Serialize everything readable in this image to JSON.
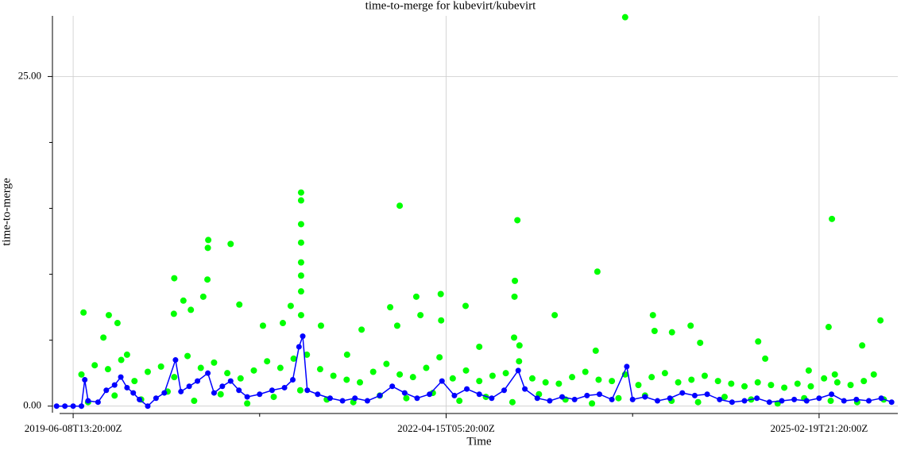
{
  "chart_data": {
    "type": "scatter",
    "title": "time-to-merge for kubevirt/kubevirt",
    "x_label": "Time",
    "y_label": "time-to-merge",
    "xlim": [
      1555000000,
      1759000000
    ],
    "xticks": [
      {
        "value": 1560000000,
        "label": "2019-06-08T13:20:00Z"
      },
      {
        "value": 1650000000,
        "label": "2022-04-15T05:20:00Z"
      },
      {
        "value": 1740000000,
        "label": "2025-02-19T21:20:00Z"
      }
    ],
    "xminorticks": [
      1605000000,
      1695000000
    ],
    "ylim": [
      -0.5,
      29.6
    ],
    "yticks": [
      {
        "value": 0,
        "label": "0.00"
      },
      {
        "value": 25,
        "label": "25.00"
      }
    ],
    "yminorticks": [
      5,
      10,
      15,
      20
    ],
    "grid": true,
    "series": [
      {
        "color": "#00ff00",
        "x": [
          1562500000,
          1568600000,
          1567300000,
          1570700000,
          1573000000,
          1584400000,
          1584300000,
          1586600000,
          1588400000,
          1592600000,
          1592500000,
          1592400000,
          1591400000,
          1598000000,
          1600100000,
          1605800000,
          1610600000,
          1612500000,
          1615000000,
          1615000000,
          1615000000,
          1615000000,
          1615000000,
          1615000000,
          1615000000,
          1615000000,
          1619800000,
          1626100000,
          1629600000,
          1636500000,
          1638800000,
          1638200000,
          1642800000,
          1643800000,
          1648700000,
          1648800000,
          1654700000,
          1658000000,
          1666600000,
          1666500000,
          1666400000,
          1667200000,
          1667700000,
          1676200000,
          1686500000,
          1686100000,
          1693200000,
          1699900000,
          1700300000,
          1704500000,
          1709000000,
          1711300000,
          1725300000,
          1727000000,
          1737500000,
          1742300000,
          1743100000,
          1743800000,
          1750400000,
          1754800000,
          1753200000
        ],
        "values": [
          7.1,
          6.9,
          5.2,
          6.3,
          3.9,
          9.7,
          7.0,
          8.0,
          7.3,
          12.6,
          12.0,
          9.6,
          8.3,
          12.3,
          7.7,
          6.1,
          6.3,
          7.6,
          16.2,
          15.6,
          13.8,
          12.4,
          10.9,
          9.9,
          8.7,
          6.9,
          6.1,
          3.9,
          5.8,
          7.5,
          15.2,
          6.1,
          8.3,
          6.9,
          8.5,
          6.5,
          7.6,
          4.5,
          9.5,
          8.3,
          5.2,
          14.1,
          4.6,
          6.9,
          10.2,
          4.2,
          29.5,
          6.9,
          5.7,
          5.6,
          6.1,
          4.8,
          4.9,
          3.6,
          2.7,
          6.0,
          14.2,
          2.4,
          4.6,
          6.5,
          2.4
        ]
      },
      {
        "color": "#00ff00",
        "x": [
          1562000000,
          1565200000,
          1568400000,
          1571600000,
          1574800000,
          1578000000,
          1581200000,
          1584400000,
          1587600000,
          1590800000,
          1594000000,
          1597200000,
          1600400000,
          1603600000,
          1606800000,
          1610000000,
          1613200000,
          1616400000,
          1619600000,
          1622800000,
          1626000000,
          1629200000,
          1632400000,
          1635600000,
          1638800000,
          1642000000,
          1645200000,
          1648400000,
          1651600000,
          1654800000,
          1658000000,
          1661200000,
          1664400000,
          1667600000,
          1670800000,
          1674000000,
          1677200000,
          1680400000,
          1683600000,
          1686800000,
          1690000000,
          1693200000,
          1696400000,
          1699600000,
          1702800000,
          1706000000,
          1709200000,
          1712400000,
          1715600000,
          1718800000,
          1722000000,
          1725200000,
          1728400000,
          1731600000,
          1734800000,
          1738000000,
          1741200000,
          1744400000,
          1747600000,
          1750800000
        ],
        "values": [
          2.4,
          3.1,
          2.8,
          3.5,
          1.9,
          2.6,
          3.0,
          2.2,
          3.8,
          2.9,
          3.3,
          2.5,
          2.1,
          2.7,
          3.4,
          2.9,
          3.6,
          3.9,
          2.8,
          2.3,
          2.0,
          1.8,
          2.6,
          3.2,
          2.4,
          2.2,
          2.9,
          3.7,
          2.1,
          2.7,
          1.9,
          2.3,
          2.5,
          3.4,
          2.1,
          1.8,
          1.7,
          2.2,
          2.6,
          2.0,
          1.9,
          2.4,
          1.6,
          2.2,
          2.5,
          1.8,
          2.0,
          2.3,
          1.9,
          1.7,
          1.5,
          1.8,
          1.6,
          1.4,
          1.7,
          1.5,
          2.1,
          1.8,
          1.6,
          1.9
        ]
      },
      {
        "color": "#00ff00",
        "x": [
          1563600000,
          1570000000,
          1576400000,
          1582800000,
          1589200000,
          1595600000,
          1602000000,
          1608400000,
          1614800000,
          1621200000,
          1627600000,
          1634000000,
          1640400000,
          1646800000,
          1653200000,
          1659600000,
          1666000000,
          1672400000,
          1678800000,
          1685200000,
          1691600000,
          1698000000,
          1704400000,
          1710800000,
          1717200000,
          1723600000,
          1730000000,
          1736400000,
          1742800000,
          1749200000,
          1755600000
        ],
        "values": [
          0.3,
          0.8,
          0.5,
          1.1,
          0.4,
          0.9,
          0.2,
          0.7,
          1.2,
          0.5,
          0.3,
          0.8,
          0.6,
          1.0,
          0.4,
          0.7,
          0.3,
          0.9,
          0.5,
          0.2,
          0.6,
          0.8,
          0.4,
          0.3,
          0.7,
          0.5,
          0.2,
          0.6,
          0.4,
          0.3,
          0.5
        ]
      },
      {
        "color": "#0000ff",
        "line": true,
        "x": [
          1556000000,
          1558000000,
          1560000000,
          1562000000,
          1562800000,
          1563600000,
          1566000000,
          1568000000,
          1570000000,
          1571500000,
          1573000000,
          1574500000,
          1576000000,
          1578000000,
          1580000000,
          1582000000,
          1584700000,
          1586000000,
          1588000000,
          1590000000,
          1592500000,
          1594000000,
          1596000000,
          1598000000,
          1600000000,
          1602000000,
          1605000000,
          1608000000,
          1611000000,
          1613000000,
          1614500000,
          1615400000,
          1616500000,
          1619000000,
          1622000000,
          1625000000,
          1628000000,
          1631000000,
          1634000000,
          1637000000,
          1640000000,
          1643000000,
          1646000000,
          1649000000,
          1652000000,
          1655000000,
          1658000000,
          1661000000,
          1664000000,
          1667400000,
          1669000000,
          1672000000,
          1675000000,
          1678000000,
          1681000000,
          1684000000,
          1687000000,
          1690000000,
          1693600000,
          1695000000,
          1698000000,
          1701000000,
          1704000000,
          1707000000,
          1710000000,
          1713000000,
          1716000000,
          1719000000,
          1722000000,
          1725000000,
          1728000000,
          1731000000,
          1734000000,
          1737000000,
          1740000000,
          1743000000,
          1746000000,
          1749000000,
          1752000000,
          1755000000,
          1757500000
        ],
        "values": [
          0,
          0,
          0,
          0,
          2.0,
          0.4,
          0.3,
          1.2,
          1.6,
          2.2,
          1.4,
          1.0,
          0.5,
          0,
          0.6,
          1.0,
          3.5,
          1.1,
          1.5,
          1.9,
          2.5,
          1.0,
          1.5,
          1.9,
          1.2,
          0.7,
          0.9,
          1.2,
          1.4,
          2.0,
          4.5,
          5.3,
          1.2,
          0.9,
          0.6,
          0.4,
          0.6,
          0.4,
          0.8,
          1.5,
          1.0,
          0.6,
          0.9,
          1.9,
          0.8,
          1.3,
          0.9,
          0.6,
          1.2,
          2.7,
          1.3,
          0.6,
          0.4,
          0.7,
          0.5,
          0.8,
          0.9,
          0.5,
          3.0,
          0.5,
          0.7,
          0.4,
          0.6,
          1.0,
          0.8,
          0.9,
          0.5,
          0.3,
          0.4,
          0.6,
          0.3,
          0.4,
          0.5,
          0.4,
          0.6,
          0.9,
          0.4,
          0.5,
          0.4,
          0.6,
          0.3
        ]
      }
    ]
  }
}
